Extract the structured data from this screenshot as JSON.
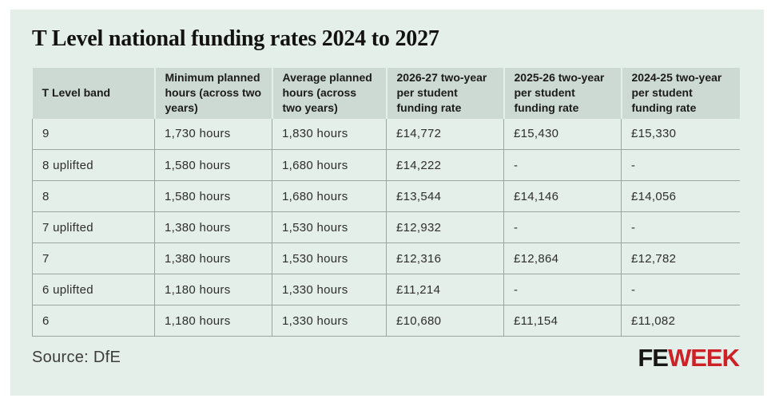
{
  "chart_data": {
    "type": "table",
    "title": "T Level national funding rates 2024 to 2027",
    "columns": [
      "T Level band",
      "Minimum planned hours (across two years)",
      "Average planned hours (across two years)",
      "2026-27 two-year per student funding rate",
      "2025-26 two-year per student funding rate",
      "2024-25 two-year per student funding rate"
    ],
    "rows": [
      [
        "9",
        "1,730 hours",
        "1,830 hours",
        "£14,772",
        "£15,430",
        "£15,330"
      ],
      [
        "8 uplifted",
        "1,580 hours",
        "1,680 hours",
        "£14,222",
        "-",
        "-"
      ],
      [
        "8",
        "1,580 hours",
        "1,680 hours",
        "£13,544",
        "£14,146",
        "£14,056"
      ],
      [
        "7 uplifted",
        "1,380 hours",
        "1,530 hours",
        "£12,932",
        "-",
        "-"
      ],
      [
        "7",
        "1,380 hours",
        "1,530 hours",
        "£12,316",
        "£12,864",
        "£12,782"
      ],
      [
        "6 uplifted",
        "1,180 hours",
        "1,330 hours",
        "£11,214",
        "-",
        "-"
      ],
      [
        "6",
        "1,180 hours",
        "1,330 hours",
        "£10,680",
        "£11,154",
        "£11,082"
      ]
    ],
    "source": "Source: DfE",
    "legend_position": "none",
    "grid": "row-and-column-rules"
  },
  "logo": {
    "fe": "FE",
    "week": "WEEK"
  },
  "colors": {
    "card_bg": "#e4efe9",
    "header_bg": "#cdd9d3",
    "border": "#9aa6a1",
    "logo_red": "#cd2027",
    "logo_black": "#161616",
    "heading_text": "#1b1b1b",
    "text": "#2e2e2e"
  }
}
